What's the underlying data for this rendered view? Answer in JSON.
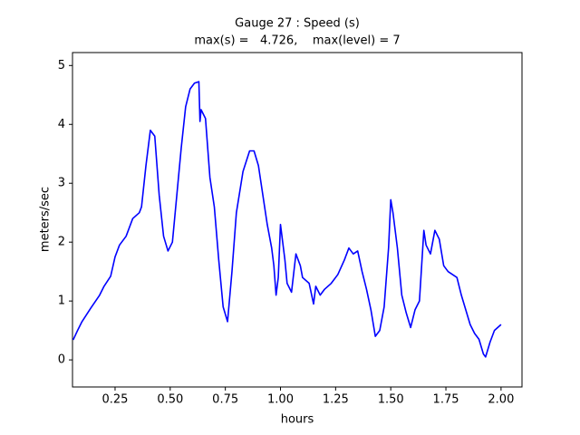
{
  "chart_data": {
    "type": "line",
    "title": "Gauge 27 : Speed (s)",
    "subtitle": "max(s) =   4.726,    max(level) = 7",
    "x_label": "hours",
    "y_label": "meters/sec",
    "xlim": [
      0.057,
      2.095
    ],
    "ylim": [
      -0.46,
      5.22
    ],
    "xticks": [
      0.25,
      {
        "value": 0.5,
        "label": "0.50"
      },
      0.75,
      {
        "value": 1.0,
        "label": "1.00"
      },
      1.25,
      {
        "value": 1.5,
        "label": "1.50"
      },
      1.75,
      {
        "value": 2.0,
        "label": "2.00"
      }
    ],
    "yticks": [
      0,
      1,
      2,
      3,
      4,
      5
    ],
    "grid": false,
    "x": [
      0.06,
      0.08,
      0.1,
      0.14,
      0.18,
      0.2,
      0.23,
      0.25,
      0.27,
      0.3,
      0.33,
      0.36,
      0.37,
      0.39,
      0.41,
      0.43,
      0.45,
      0.47,
      0.49,
      0.51,
      0.53,
      0.55,
      0.57,
      0.59,
      0.61,
      0.63,
      0.635,
      0.64,
      0.66,
      0.68,
      0.7,
      0.72,
      0.74,
      0.76,
      0.78,
      0.8,
      0.83,
      0.86,
      0.88,
      0.9,
      0.92,
      0.94,
      0.96,
      0.97,
      0.98,
      0.99,
      1.0,
      1.02,
      1.03,
      1.05,
      1.07,
      1.09,
      1.1,
      1.13,
      1.15,
      1.16,
      1.18,
      1.2,
      1.23,
      1.26,
      1.29,
      1.31,
      1.33,
      1.35,
      1.37,
      1.39,
      1.41,
      1.43,
      1.45,
      1.47,
      1.49,
      1.5,
      1.51,
      1.53,
      1.55,
      1.57,
      1.59,
      1.61,
      1.63,
      1.65,
      1.66,
      1.68,
      1.7,
      1.72,
      1.74,
      1.76,
      1.78,
      1.8,
      1.82,
      1.84,
      1.86,
      1.88,
      1.9,
      1.92,
      1.93,
      1.95,
      1.97,
      2.0
    ],
    "series": [
      {
        "name": "s",
        "color": "#0000ff",
        "values": [
          0.34,
          0.5,
          0.65,
          0.88,
          1.1,
          1.25,
          1.42,
          1.75,
          1.95,
          2.1,
          2.4,
          2.5,
          2.6,
          3.3,
          3.9,
          3.8,
          2.8,
          2.1,
          1.85,
          2.0,
          2.8,
          3.6,
          4.3,
          4.6,
          4.7,
          4.726,
          4.05,
          4.25,
          4.1,
          3.1,
          2.6,
          1.7,
          0.9,
          0.65,
          1.5,
          2.5,
          3.2,
          3.55,
          3.55,
          3.3,
          2.8,
          2.3,
          1.9,
          1.6,
          1.1,
          1.4,
          2.3,
          1.7,
          1.3,
          1.15,
          1.8,
          1.6,
          1.4,
          1.3,
          0.95,
          1.25,
          1.1,
          1.2,
          1.3,
          1.45,
          1.7,
          1.9,
          1.8,
          1.85,
          1.5,
          1.2,
          0.85,
          0.4,
          0.5,
          0.9,
          1.9,
          2.72,
          2.5,
          1.9,
          1.1,
          0.8,
          0.55,
          0.85,
          1.0,
          2.2,
          1.95,
          1.8,
          2.2,
          2.05,
          1.6,
          1.5,
          1.45,
          1.4,
          1.1,
          0.85,
          0.6,
          0.45,
          0.35,
          0.1,
          0.05,
          0.3,
          0.5,
          0.6
        ]
      }
    ]
  }
}
